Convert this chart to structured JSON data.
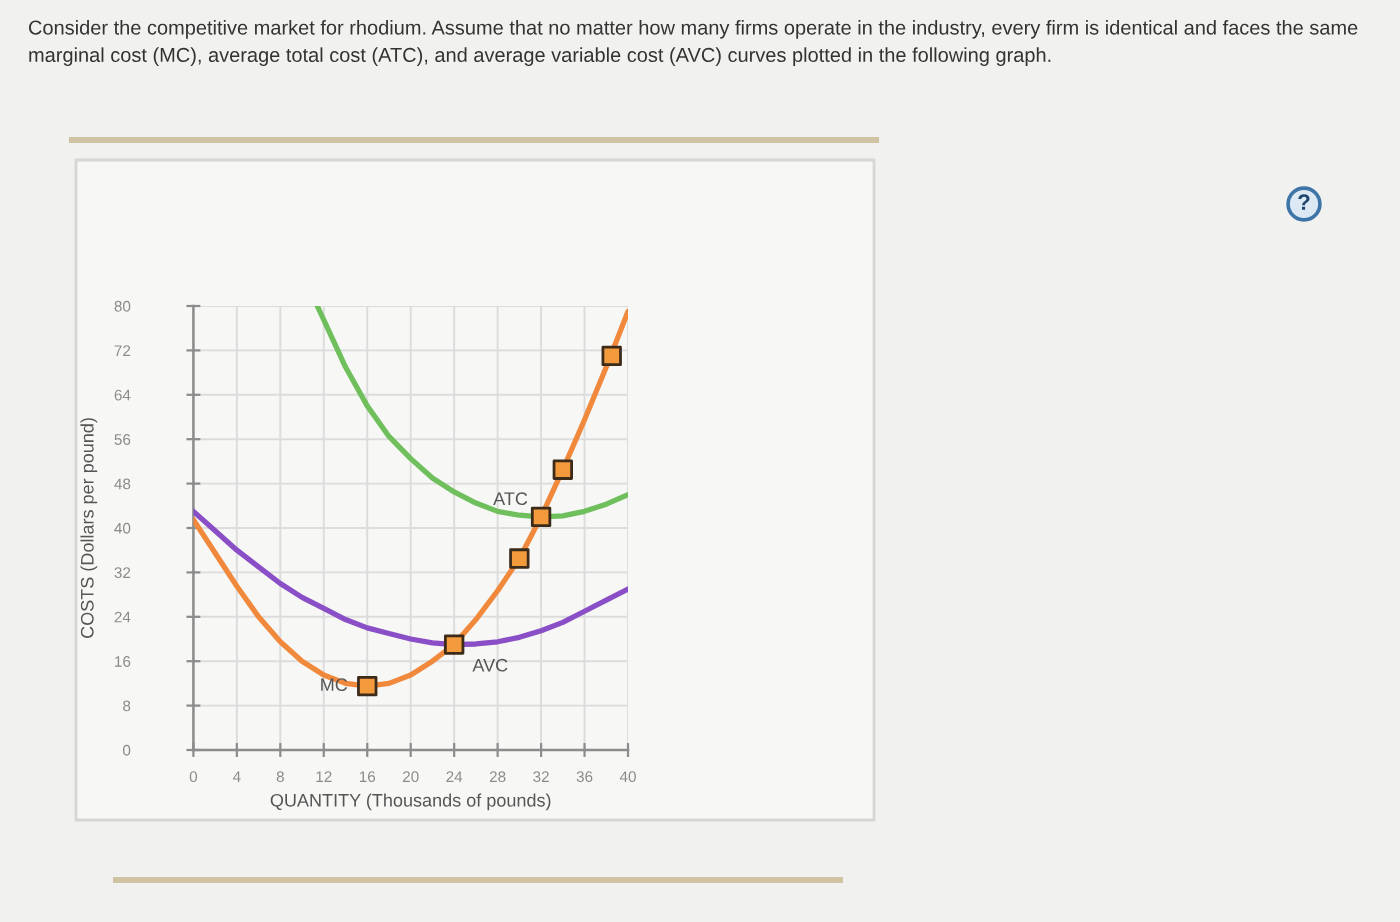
{
  "chart_data": {
    "type": "line",
    "title": "Consider the competitive market for rhodium. Assume that no matter how many firms operate in the industry, every firm is identical and faces the same marginal cost (MC), average total cost (ATC), and average variable cost (AVC) curves plotted in the following graph.",
    "xlabel": "QUANTITY (Thousands of pounds)",
    "ylabel": "COSTS (Dollars per pound)",
    "annotations": [
      "?"
    ],
    "xlim": [
      0,
      40
    ],
    "ylim": [
      0,
      80
    ],
    "xticks": [
      0,
      4,
      8,
      12,
      16,
      20,
      24,
      28,
      32,
      36,
      40
    ],
    "yticks": [
      0,
      8,
      16,
      24,
      32,
      40,
      48,
      56,
      64,
      72,
      80
    ],
    "grid": true,
    "line_style": "solid",
    "series": [
      {
        "name": "ATC",
        "color": "#6fbf5c",
        "x": [
          11.4,
          12,
          14,
          16,
          18,
          20,
          22,
          24,
          26,
          28,
          30,
          32,
          34,
          36,
          38,
          40
        ],
        "values": [
          80,
          77.5,
          69,
          62,
          56.5,
          52.5,
          49,
          46.5,
          44.5,
          43,
          42.3,
          42,
          42.2,
          43,
          44.3,
          46
        ]
      },
      {
        "name": "AVC",
        "color": "#8a4fc6",
        "x": [
          0,
          2,
          4,
          6,
          8,
          10,
          12,
          14,
          16,
          18,
          20,
          22,
          24,
          26,
          28,
          30,
          32,
          34,
          36,
          38,
          40
        ],
        "values": [
          43,
          39.5,
          36,
          33,
          30,
          27.5,
          25.5,
          23.5,
          22,
          21,
          20,
          19.3,
          19,
          19.1,
          19.5,
          20.3,
          21.5,
          23,
          25,
          27,
          29
        ]
      },
      {
        "name": "MC",
        "color": "#f0893c",
        "x": [
          0,
          2,
          4,
          6,
          8,
          10,
          12,
          14,
          16,
          18,
          20,
          22,
          24,
          26,
          28,
          30,
          32,
          34,
          36,
          38,
          40
        ],
        "values": [
          41.5,
          35.5,
          29.5,
          24,
          19.5,
          16,
          13.5,
          12,
          11.5,
          12,
          13.5,
          16,
          19,
          23.5,
          28.7,
          34.5,
          42,
          50.5,
          59.5,
          69,
          79
        ]
      },
      {
        "type": "scatter",
        "marker": "square",
        "color": "#f39a3c",
        "x": [
          16,
          24,
          30,
          32,
          34,
          38.5
        ],
        "values": [
          11.5,
          19,
          34.5,
          42,
          50.5,
          71
        ]
      }
    ]
  }
}
